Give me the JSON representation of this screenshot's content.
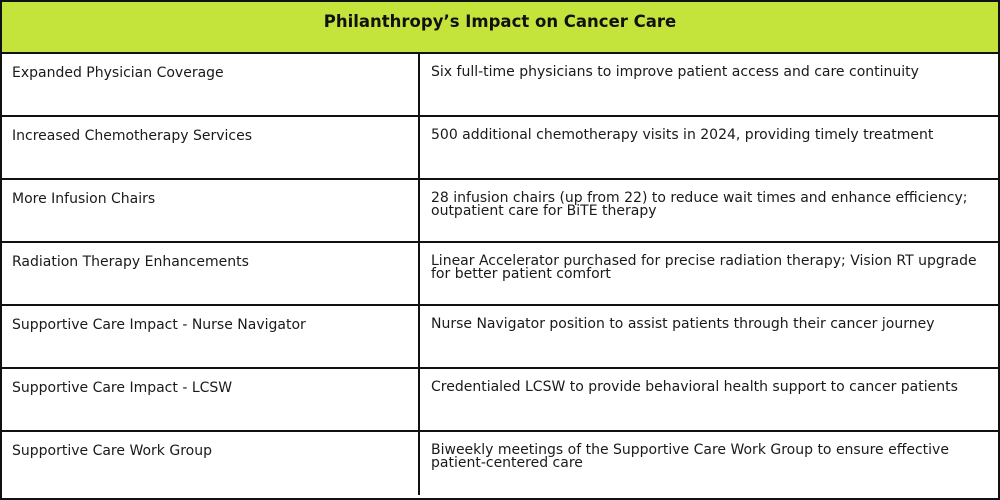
{
  "colors": {
    "header_background": "#c4e43b",
    "border": "#111111",
    "text": "#1a1a1a"
  },
  "table": {
    "title": "Philanthropy’s Impact on Cancer Care",
    "rows": [
      {
        "label": "Expanded Physician Coverage",
        "value": "Six full-time physicians to improve patient access and care continuity"
      },
      {
        "label": "Increased Chemotherapy Services",
        "value": "500 additional chemotherapy visits in 2024, providing timely treatment"
      },
      {
        "label": "More Infusion Chairs",
        "value": "28 infusion chairs (up from 22) to reduce wait times and enhance efficiency; outpatient care for BiTE therapy"
      },
      {
        "label": "Radiation Therapy Enhancements",
        "value": "Linear Accelerator purchased for precise radiation therapy; Vision RT upgrade for better patient comfort"
      },
      {
        "label": "Supportive Care Impact - Nurse Navigator",
        "value": "Nurse Navigator position to assist patients through their cancer journey"
      },
      {
        "label": "Supportive Care Impact - LCSW",
        "value": "Credentialed LCSW to provide behavioral health support to cancer patients"
      },
      {
        "label": "Supportive Care Work Group",
        "value": "Biweekly meetings of the Supportive Care Work Group to ensure effective patient-centered care"
      }
    ]
  }
}
